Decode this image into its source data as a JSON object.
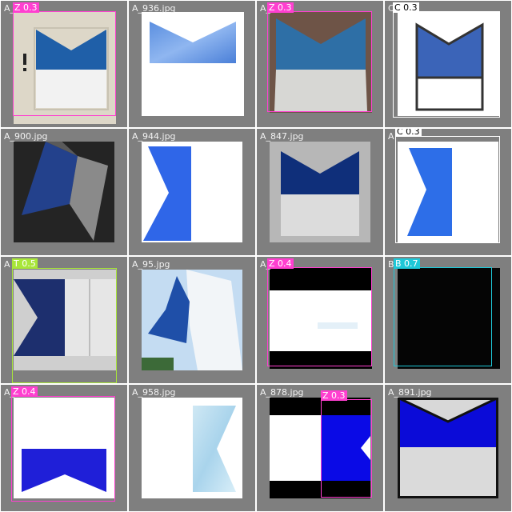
{
  "tiles": [
    {
      "filename": "A_",
      "detections": [
        {
          "label": "Z 0.3",
          "color": "#ff3fd0"
        }
      ]
    },
    {
      "filename": "A_936.jpg",
      "detections": []
    },
    {
      "filename": "A_",
      "detections": [
        {
          "label": "Z 0.3",
          "color": "#ff3fd0"
        }
      ]
    },
    {
      "filename": "C",
      "detections": [
        {
          "label": "C 0.3",
          "color": "#ffffff"
        }
      ]
    },
    {
      "filename": "A_900.jpg",
      "detections": []
    },
    {
      "filename": "A_944.jpg",
      "detections": []
    },
    {
      "filename": "A_847.jpg",
      "detections": []
    },
    {
      "filename": "A",
      "detections": [
        {
          "label": "C 0.3",
          "color": "#ffffff"
        }
      ]
    },
    {
      "filename": "A",
      "detections": [
        {
          "label": "T 0.5",
          "color": "#a8e63a"
        }
      ]
    },
    {
      "filename": "A_95.jpg",
      "detections": []
    },
    {
      "filename": "A_",
      "detections": [
        {
          "label": "Z 0.4",
          "color": "#ff3fd0"
        }
      ]
    },
    {
      "filename": "B",
      "detections": [
        {
          "label": "B 0.7",
          "color": "#1ec8d8"
        }
      ]
    },
    {
      "filename": "A_",
      "detections": [
        {
          "label": "Z 0.4",
          "color": "#ff3fd0"
        }
      ]
    },
    {
      "filename": "A_958.jpg",
      "detections": []
    },
    {
      "filename": "A_878.jpg",
      "detections": [
        {
          "label": "Z 0.3",
          "color": "#ff3fd0"
        }
      ]
    },
    {
      "filename": "A_891.jpg",
      "detections": []
    }
  ]
}
